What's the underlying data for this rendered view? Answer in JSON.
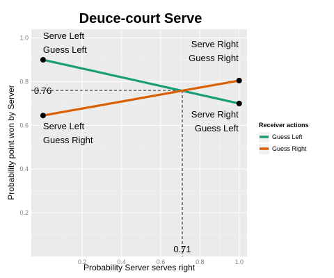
{
  "chart_data": {
    "type": "line",
    "title": "Deuce-court Serve",
    "xlabel": "Probability Server serves right",
    "ylabel": "Probability point won by Server",
    "xlim": [
      -0.06,
      1.04
    ],
    "ylim": [
      0.0,
      1.04
    ],
    "x_ticks": [
      0.2,
      0.4,
      0.6,
      0.8,
      1.0
    ],
    "x_tick_labels": [
      "0.2",
      "0.4",
      "0.6",
      "0.8",
      "1.0"
    ],
    "y_ticks": [
      0.2,
      0.4,
      0.6,
      0.8,
      1.0
    ],
    "y_tick_labels": [
      "0.2",
      "0.4",
      "0.6",
      "0.8",
      "1.0"
    ],
    "grid": true,
    "legend": {
      "title": "Receiver actions",
      "position": "right"
    },
    "series": [
      {
        "name": "Guess Left",
        "color": "#1b9e77",
        "x": [
          0.0,
          1.0
        ],
        "y": [
          0.9,
          0.7
        ]
      },
      {
        "name": "Guess Right",
        "color": "#d95f02",
        "x": [
          0.0,
          1.0
        ],
        "y": [
          0.645,
          0.805
        ]
      }
    ],
    "intersection": {
      "x": 0.71,
      "y": 0.76,
      "x_label": "0.71",
      "y_label": "0.76"
    },
    "annotations": [
      {
        "lines": [
          "Serve Left",
          "Guess Left"
        ],
        "x": 0.0,
        "y": 0.9,
        "placement": "above"
      },
      {
        "lines": [
          "Serve Right",
          "Guess Right"
        ],
        "x": 1.0,
        "y": 0.805,
        "placement": "above"
      },
      {
        "lines": [
          "Serve Left",
          "Guess Right"
        ],
        "x": 0.0,
        "y": 0.645,
        "placement": "below"
      },
      {
        "lines": [
          "Serve Right",
          "Guess Left"
        ],
        "x": 1.0,
        "y": 0.7,
        "placement": "below"
      }
    ]
  }
}
